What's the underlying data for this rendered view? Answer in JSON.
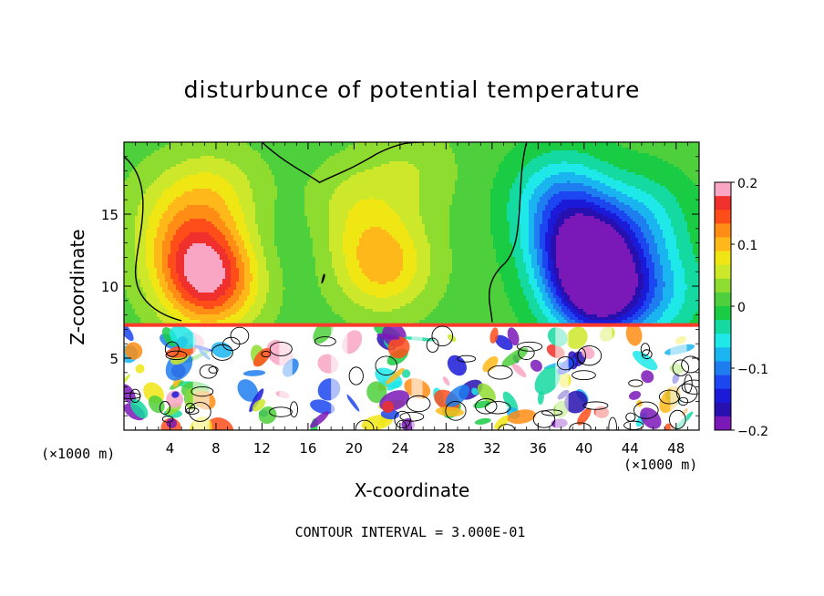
{
  "chart_data": {
    "type": "heatmap",
    "title": "disturbunce of potential temperature",
    "xlabel": "X-coordinate",
    "ylabel": "Z-coordinate",
    "x_scale_label": "(×1000 m)",
    "x_scale_label_right": "(×1000 m)",
    "x_ticks": [
      4,
      8,
      12,
      16,
      20,
      24,
      28,
      32,
      36,
      40,
      44,
      48
    ],
    "y_ticks": [
      5,
      10,
      15
    ],
    "xlim": [
      0,
      50
    ],
    "ylim": [
      0,
      20
    ],
    "colorbar": {
      "ticks": [
        "0.2",
        "0.1",
        "0",
        "−0.1",
        "−0.2"
      ],
      "range": [
        -0.2,
        0.2
      ],
      "colors": [
        "#f9a6c4",
        "#f0302c",
        "#ff4d1a",
        "#ff8c14",
        "#ffb81a",
        "#f0e614",
        "#cde82a",
        "#8fdc30",
        "#4ecf3c",
        "#19cc44",
        "#14d9a0",
        "#1ee8e8",
        "#1ab4f0",
        "#1e7ef0",
        "#1b46f0",
        "#1a1ad8",
        "#2810b0",
        "#7a18b8"
      ]
    },
    "contour_note": "CONTOUR INTERVAL = 3.000E-01",
    "fields": {
      "background_level": 0.0,
      "blobs": [
        {
          "x": 7.5,
          "z": 10.2,
          "value": 0.14
        },
        {
          "x": 6,
          "z": 12.5,
          "value": 0.08
        },
        {
          "x": 4,
          "z": 15.5,
          "value": 0.03
        },
        {
          "x": 8,
          "z": 16.5,
          "value": 0.05
        },
        {
          "x": 22.5,
          "z": 11.5,
          "value": 0.09
        },
        {
          "x": 20,
          "z": 15.5,
          "value": 0.04
        },
        {
          "x": 25,
          "z": 18,
          "value": 0.03
        },
        {
          "x": 14.5,
          "z": 13,
          "value": -0.01
        },
        {
          "x": 33,
          "z": 11,
          "value": 0.0
        },
        {
          "x": 40,
          "z": 12.5,
          "value": -0.17
        },
        {
          "x": 41.5,
          "z": 9.5,
          "value": -0.2
        },
        {
          "x": 38,
          "z": 16,
          "value": -0.09
        },
        {
          "x": 45,
          "z": 14.5,
          "value": -0.06
        },
        {
          "x": 47,
          "z": 9.5,
          "value": -0.05
        }
      ]
    }
  }
}
